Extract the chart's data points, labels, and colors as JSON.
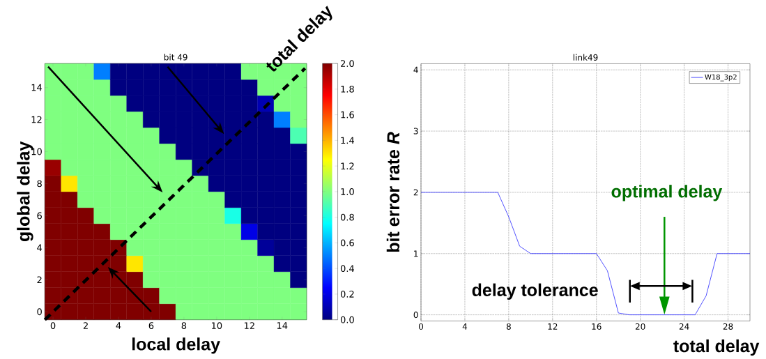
{
  "chart_data": [
    {
      "type": "heatmap",
      "title": "bit 49",
      "xlabel": "local delay",
      "ylabel": "global delay",
      "categories": [
        "0",
        null,
        "2",
        null,
        "4",
        null,
        "6",
        null,
        "8",
        null,
        "10",
        null,
        "12",
        null,
        "14",
        null
      ],
      "y_categories": [
        null,
        "14",
        null,
        "12",
        null,
        "10",
        null,
        "8",
        null,
        "6",
        null,
        "4",
        null,
        "2",
        null,
        "0"
      ],
      "cells": [
        [
          1,
          1,
          1,
          0.5,
          0,
          0,
          0,
          0,
          0,
          0,
          0,
          0,
          1,
          1,
          1,
          1
        ],
        [
          1,
          1,
          1,
          1,
          0,
          0,
          0,
          0,
          0,
          0,
          0,
          0,
          0,
          1,
          1,
          1
        ],
        [
          1,
          1,
          1,
          1,
          1,
          0,
          0,
          0,
          0,
          0,
          0,
          0,
          0,
          0.1,
          1,
          1
        ],
        [
          1,
          1,
          1,
          1,
          1,
          1,
          0,
          0,
          0,
          0,
          0,
          0,
          0,
          0,
          0.5,
          1
        ],
        [
          1,
          1,
          1,
          1,
          1,
          1,
          1,
          0,
          0,
          0,
          0,
          0,
          0,
          0,
          0,
          0.9
        ],
        [
          1,
          1,
          1,
          1,
          1,
          1,
          1,
          1,
          0,
          0,
          0,
          0,
          0,
          0,
          0,
          0
        ],
        [
          1.95,
          1,
          1,
          1,
          1,
          1,
          1,
          1,
          1,
          0,
          0,
          0,
          0,
          0,
          0,
          0
        ],
        [
          2,
          1.3,
          1,
          1,
          1,
          1,
          1,
          1,
          1,
          1,
          0,
          0,
          0,
          0,
          0,
          0
        ],
        [
          2,
          2,
          1,
          1,
          1,
          1,
          1,
          1,
          1,
          1,
          1,
          0,
          0,
          0,
          0,
          0
        ],
        [
          2,
          2,
          2,
          1,
          1,
          1,
          1,
          1,
          1,
          1,
          1,
          0.8,
          0,
          0,
          0,
          0
        ],
        [
          2,
          2,
          2,
          2,
          1,
          1,
          1,
          1,
          1,
          1,
          1,
          1,
          0.2,
          0,
          0,
          0
        ],
        [
          2,
          2,
          2,
          2,
          2,
          1,
          1,
          1,
          1,
          1,
          1,
          1,
          1,
          0.05,
          0,
          0
        ],
        [
          2,
          2,
          2,
          2,
          2,
          1.3,
          1,
          1,
          1,
          1,
          1,
          1,
          1,
          1,
          0,
          0
        ],
        [
          2,
          2,
          2,
          2,
          2,
          2,
          1,
          1,
          1,
          1,
          1,
          1,
          1,
          1,
          1,
          0
        ],
        [
          2,
          2,
          2,
          2,
          2,
          2,
          2,
          1,
          1,
          1,
          1,
          1,
          1,
          1,
          1,
          1
        ],
        [
          2,
          2,
          2,
          2,
          2,
          2,
          2,
          2,
          1,
          1,
          1,
          1,
          1,
          1,
          1,
          1
        ]
      ],
      "clim": [
        0,
        2
      ],
      "cticks": [
        {
          "value": 0,
          "label": "0.0"
        },
        {
          "value": 0.2,
          "label": "0.2"
        },
        {
          "value": 0.4,
          "label": "0.4"
        },
        {
          "value": 0.6,
          "label": "0.6"
        },
        {
          "value": 0.8,
          "label": "0.8"
        },
        {
          "value": 1,
          "label": "1.0"
        },
        {
          "value": 1.2,
          "label": "1.2"
        },
        {
          "value": 1.4,
          "label": "1.4"
        },
        {
          "value": 1.6,
          "label": "1.6"
        },
        {
          "value": 1.8,
          "label": "1.8"
        },
        {
          "value": 2,
          "label": "2.0"
        }
      ],
      "annotations": [
        "total delay"
      ]
    },
    {
      "type": "line",
      "title": "link49",
      "xlabel": "total delay",
      "ylabel": "bit error rate *R*",
      "x": [
        0,
        7,
        8,
        9,
        10,
        16,
        17,
        18,
        19,
        25,
        26,
        27,
        30
      ],
      "series": [
        {
          "name": "W18_3p2",
          "color": "#4040ff",
          "values": [
            2,
            2,
            1.6,
            1.12,
            1,
            1,
            0.72,
            0.03,
            0,
            0,
            0.31,
            1,
            1
          ]
        }
      ],
      "xlim": [
        0,
        30
      ],
      "ylim": [
        -0.1,
        4.1
      ],
      "xticks": [
        0,
        4,
        8,
        12,
        16,
        20,
        24,
        28
      ],
      "yticks": [
        0,
        1,
        2,
        3,
        4
      ],
      "grid": true,
      "legend": "top right",
      "annotations": [
        "optimal delay",
        "delay tolerance"
      ]
    }
  ]
}
